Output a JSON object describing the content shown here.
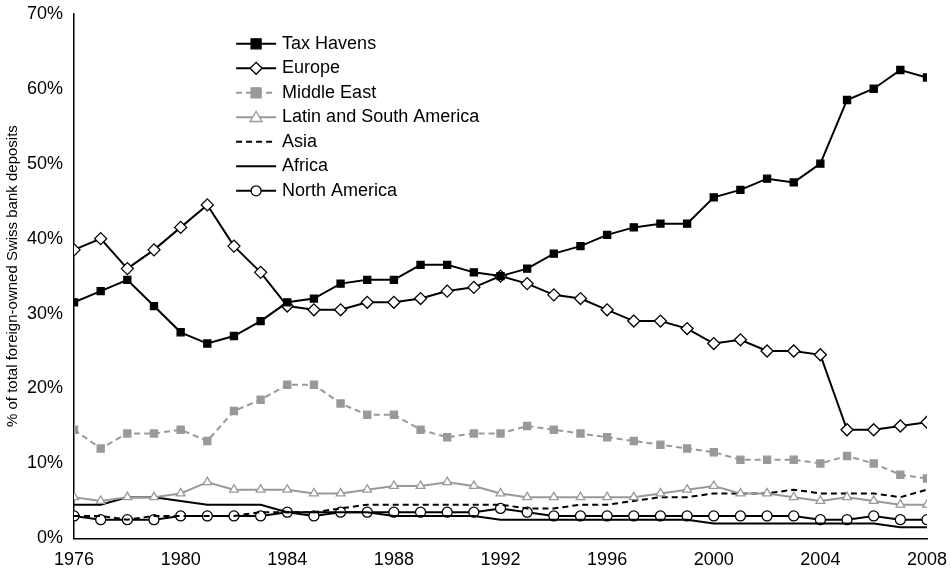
{
  "chart_data": {
    "type": "line",
    "y_label": "% of total foreign-owned Swiss bank deposits",
    "x": [
      1976,
      1977,
      1978,
      1979,
      1980,
      1981,
      1982,
      1983,
      1984,
      1985,
      1986,
      1987,
      1988,
      1989,
      1990,
      1991,
      1992,
      1993,
      1994,
      1995,
      1996,
      1997,
      1998,
      1999,
      2000,
      2001,
      2002,
      2003,
      2004,
      2005,
      2006,
      2007,
      2008
    ],
    "xlim": [
      1976,
      2008
    ],
    "xticks": [
      1976,
      1980,
      1984,
      1988,
      1992,
      1996,
      2000,
      2004,
      2008
    ],
    "ylim": [
      0,
      70
    ],
    "yticks": [
      {
        "value": 0,
        "label": "0%"
      },
      {
        "value": 10,
        "label": "10%"
      },
      {
        "value": 20,
        "label": "20%"
      },
      {
        "value": 30,
        "label": "30%"
      },
      {
        "value": 40,
        "label": "40%"
      },
      {
        "value": 50,
        "label": "50%"
      },
      {
        "value": 60,
        "label": "60%"
      },
      {
        "value": 70,
        "label": "70%"
      }
    ],
    "grid": false,
    "legend": "top",
    "series": [
      {
        "name": "Tax Havens",
        "color": "#000000",
        "marker": "square",
        "line_style": "solid",
        "values": [
          31.5,
          33,
          34.5,
          31,
          27.5,
          26,
          27,
          29,
          31.5,
          32,
          34,
          34.5,
          34.5,
          36.5,
          36.5,
          35.5,
          35,
          36,
          38,
          39,
          40.5,
          41.5,
          42,
          42,
          45.5,
          46.5,
          48,
          47.5,
          50,
          58.5,
          60,
          62.5,
          61.5
        ]
      },
      {
        "name": "Europe",
        "color": "#000000",
        "marker": "open-diamond",
        "line_style": "solid",
        "values": [
          38.5,
          40,
          36,
          38.5,
          41.5,
          44.5,
          39,
          35.5,
          31,
          30.5,
          30.5,
          31.5,
          31.5,
          32,
          33,
          33.5,
          35,
          34,
          32.5,
          32,
          30.5,
          29,
          29,
          28,
          26,
          26.5,
          25,
          25,
          24.5,
          14.5,
          14.5,
          15,
          15.5
        ]
      },
      {
        "name": "Middle East",
        "color": "#999999",
        "marker": "square",
        "line_style": "dashed",
        "values": [
          14.5,
          12,
          14,
          14,
          14.5,
          13,
          17,
          18.5,
          20.5,
          20.5,
          18,
          16.5,
          16.5,
          14.5,
          13.5,
          14,
          14,
          15,
          14.5,
          14,
          13.5,
          13,
          12.5,
          12,
          11.5,
          10.5,
          10.5,
          10.5,
          10,
          11,
          10,
          8.5,
          8
        ]
      },
      {
        "name": "Latin and South America",
        "color": "#999999",
        "marker": "open-triangle",
        "line_style": "solid",
        "values": [
          5.5,
          5,
          5.5,
          5.5,
          6,
          7.5,
          6.5,
          6.5,
          6.5,
          6,
          6,
          6.5,
          7,
          7,
          7.5,
          7,
          6,
          5.5,
          5.5,
          5.5,
          5.5,
          5.5,
          6,
          6.5,
          7,
          6,
          6,
          5.5,
          5,
          5.5,
          5,
          4.5,
          4.5
        ]
      },
      {
        "name": "Asia",
        "color": "#000000",
        "marker": "none",
        "line_style": "dashed",
        "values": [
          3,
          3,
          2.5,
          3,
          3,
          3,
          3,
          3.5,
          3.5,
          3.5,
          4,
          4.5,
          4.5,
          4.5,
          4.5,
          4.5,
          4.5,
          4,
          4,
          4.5,
          4.5,
          5,
          5.5,
          5.5,
          6,
          6,
          6,
          6.5,
          6,
          6,
          6,
          5.5,
          6.5
        ]
      },
      {
        "name": "Africa",
        "color": "#000000",
        "marker": "none",
        "line_style": "solid",
        "values": [
          4.5,
          4.5,
          5.5,
          5.5,
          5,
          4.5,
          4.5,
          4.5,
          3.5,
          3.5,
          3.5,
          3.5,
          3,
          3,
          3,
          3,
          2.5,
          2.5,
          2.5,
          2.5,
          2.5,
          2.5,
          2.5,
          2.5,
          2,
          2,
          2,
          2,
          2,
          2,
          2,
          1.5,
          1.5
        ]
      },
      {
        "name": "North America",
        "color": "#000000",
        "marker": "open-circle",
        "line_style": "solid",
        "values": [
          3,
          2.5,
          2.5,
          2.5,
          3,
          3,
          3,
          3,
          3.5,
          3,
          3.5,
          3.5,
          3.5,
          3.5,
          3.5,
          3.5,
          4,
          3.5,
          3,
          3,
          3,
          3,
          3,
          3,
          3,
          3,
          3,
          3,
          2.5,
          2.5,
          3,
          2.5,
          2.5
        ]
      }
    ]
  }
}
